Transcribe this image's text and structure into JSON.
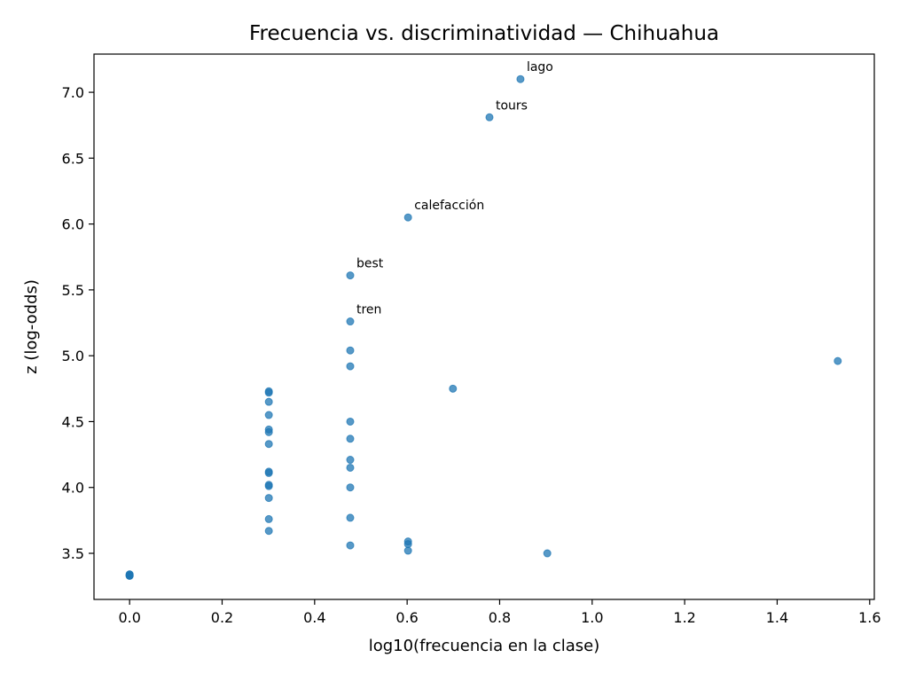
{
  "chart_data": {
    "type": "scatter",
    "title": "Frecuencia vs. discriminatividad — Chihuahua",
    "xlabel": "log10(frecuencia en la clase)",
    "ylabel": "z (log-odds)",
    "xlim": [
      -0.077,
      1.61
    ],
    "ylim": [
      3.15,
      7.29
    ],
    "xticks": [
      0.0,
      0.2,
      0.4,
      0.6,
      0.8,
      1.0,
      1.2,
      1.4,
      1.6
    ],
    "xtick_labels": [
      "0.0",
      "0.2",
      "0.4",
      "0.6",
      "0.8",
      "1.0",
      "1.2",
      "1.4",
      "1.6"
    ],
    "yticks": [
      3.5,
      4.0,
      4.5,
      5.0,
      5.5,
      6.0,
      6.5,
      7.0
    ],
    "ytick_labels": [
      "3.5",
      "4.0",
      "4.5",
      "5.0",
      "5.5",
      "6.0",
      "6.5",
      "7.0"
    ],
    "grid": false,
    "point_color": "#1f77b4",
    "point_opacity": 0.75,
    "series": [
      {
        "x": [
          0.0,
          0.0,
          0.0,
          0.0,
          0.0,
          0.301,
          0.301,
          0.301,
          0.301,
          0.301,
          0.301,
          0.301,
          0.301,
          0.301,
          0.301,
          0.301,
          0.301,
          0.301,
          0.301,
          0.477,
          0.477,
          0.477,
          0.477,
          0.477,
          0.477,
          0.477,
          0.477,
          0.477,
          0.477,
          0.477,
          0.602,
          0.602,
          0.602,
          0.602,
          0.699,
          0.778,
          0.845,
          0.903,
          1.531
        ],
        "y": [
          3.33,
          3.33,
          3.34,
          3.34,
          3.33,
          4.73,
          4.72,
          4.65,
          4.55,
          4.44,
          4.42,
          4.33,
          4.12,
          4.11,
          4.02,
          4.01,
          3.92,
          3.76,
          3.67,
          5.61,
          5.26,
          5.04,
          4.92,
          4.5,
          4.37,
          4.21,
          4.15,
          4.0,
          3.77,
          3.56,
          6.05,
          3.59,
          3.57,
          3.52,
          4.75,
          6.81,
          7.1,
          3.5,
          4.96
        ]
      }
    ],
    "annotations": [
      {
        "text": "lago",
        "x": 0.845,
        "y": 7.1
      },
      {
        "text": "tours",
        "x": 0.778,
        "y": 6.81
      },
      {
        "text": "calefacción",
        "x": 0.602,
        "y": 6.05
      },
      {
        "text": "best",
        "x": 0.477,
        "y": 5.61
      },
      {
        "text": "tren",
        "x": 0.477,
        "y": 5.26
      }
    ]
  }
}
